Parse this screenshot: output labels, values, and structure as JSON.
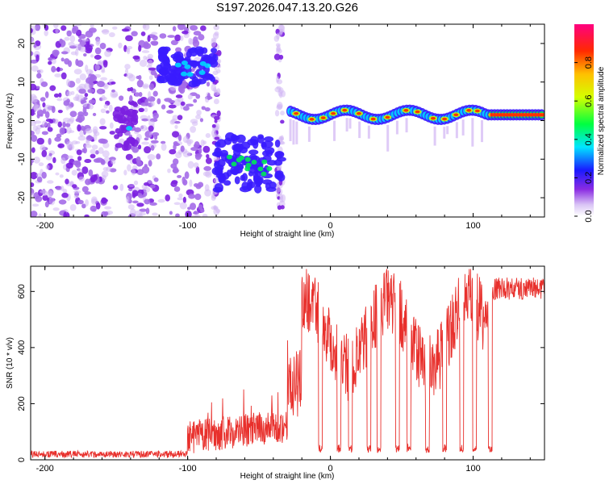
{
  "chart_data": [
    {
      "type": "heatmap",
      "title": "S197.2026.047.13.20.G26",
      "xlabel": "Height of straight line (km)",
      "ylabel": "Frequency (Hz)",
      "xlim": [
        -210,
        150
      ],
      "ylim": [
        -25,
        25
      ],
      "xticks": [
        -200,
        -100,
        0,
        100
      ],
      "yticks": [
        -20,
        -10,
        0,
        10,
        20
      ],
      "colorbar": {
        "label": "Normalized spectral amplitude",
        "range": [
          0,
          1
        ],
        "ticks": [
          "0.0",
          "0.2",
          "0.4",
          "0.6",
          "0.8"
        ]
      },
      "features": [
        {
          "name": "noise-scatter",
          "x_range": [
            -210,
            -85
          ],
          "y_range": [
            -25,
            25
          ],
          "amplitude": 0.1
        },
        {
          "name": "cluster-a",
          "x": -143,
          "y": -2,
          "amplitude": 0.25
        },
        {
          "name": "cluster-b",
          "x": -100,
          "y": 14,
          "amplitude": 0.35
        },
        {
          "name": "cluster-c",
          "x": -57,
          "y": -11,
          "amplitude": 0.3
        },
        {
          "name": "carrier-band",
          "x_range": [
            -27,
            150
          ],
          "y": 1.5,
          "amplitude": 0.85
        }
      ]
    },
    {
      "type": "line",
      "xlabel": "Height of straight line (km)",
      "ylabel": "SNR (10 * v/v)",
      "xlim": [
        -210,
        150
      ],
      "ylim": [
        0,
        690
      ],
      "xticks": [
        -200,
        -100,
        0,
        100
      ],
      "yticks": [
        0,
        200,
        400,
        600
      ],
      "series": [
        {
          "name": "SNR",
          "color": "#e8302c",
          "segments": [
            {
              "x": [
                -210,
                -100
              ],
              "level": 20,
              "noise": 12
            },
            {
              "x": [
                -100,
                -30
              ],
              "level": 80,
              "noise": 60,
              "peak": 270
            },
            {
              "x": [
                -30,
                112
              ],
              "level": 450,
              "noise": 120,
              "peak": 670
            },
            {
              "x": [
                112,
                150
              ],
              "level": 610,
              "noise": 40
            }
          ],
          "dropouts": [
            -7,
            6,
            14,
            27,
            34,
            47,
            55,
            68,
            80,
            92,
            101,
            112
          ]
        }
      ]
    }
  ]
}
